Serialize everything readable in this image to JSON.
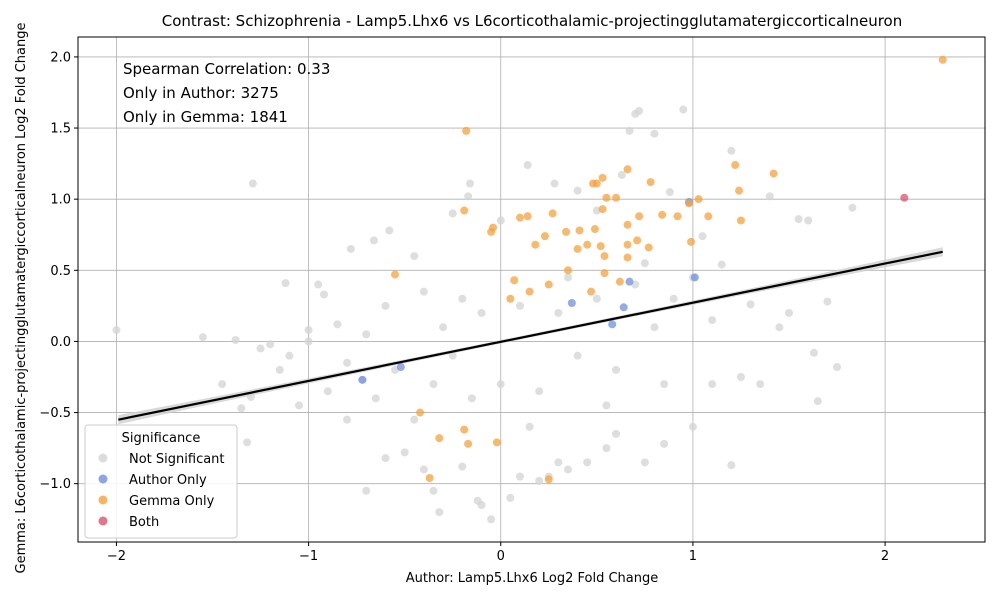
{
  "chart_data": {
    "type": "scatter",
    "title": "Contrast: Schizophrenia - Lamp5.Lhx6 vs L6corticothalamic-projectingglutamatergiccorticalneuron",
    "xlabel": "Author: Lamp5.Lhx6 Log2 Fold Change",
    "ylabel": "Gemma: L6corticothalamic-projectingglutamatergiccorticalneuron Log2 Fold Change",
    "xlim": [
      -2.2,
      2.52
    ],
    "ylim": [
      -1.41,
      2.14
    ],
    "x_ticks": [
      -2,
      -1,
      0,
      1,
      2
    ],
    "x_tick_labels": [
      "−2",
      "−1",
      "0",
      "1",
      "2"
    ],
    "y_ticks": [
      -1.0,
      -0.5,
      0.0,
      0.5,
      1.0,
      1.5,
      2.0
    ],
    "y_tick_labels": [
      "−1.0",
      "−0.5",
      "0.0",
      "0.5",
      "1.0",
      "1.5",
      "2.0"
    ],
    "grid": true,
    "annotations": [
      "Spearman Correlation: 0.33",
      "Only in Author: 3275",
      "Only in Gemma: 1841"
    ],
    "legend": {
      "title": "Significance",
      "placement": "lower-left",
      "entries": [
        {
          "label": "Not Significant",
          "color": "#d3d3d3"
        },
        {
          "label": "Author Only",
          "color": "#6f8fe0"
        },
        {
          "label": "Gemma Only",
          "color": "#f5a23c"
        },
        {
          "label": "Both",
          "color": "#d9546e"
        }
      ]
    },
    "regression_line": {
      "x": [
        -1.99,
        2.3
      ],
      "y": [
        -0.55,
        0.63
      ],
      "color": "#000000",
      "band_color": "#cfcfcf"
    },
    "series": [
      {
        "name": "Not Significant",
        "color": "#d3d3d3",
        "points": [
          [
            -2.0,
            0.08
          ],
          [
            -1.55,
            0.03
          ],
          [
            -1.45,
            -0.3
          ],
          [
            -1.38,
            0.01
          ],
          [
            -1.35,
            -0.47
          ],
          [
            -1.32,
            -0.71
          ],
          [
            -1.3,
            -0.39
          ],
          [
            -1.29,
            1.11
          ],
          [
            -1.25,
            -0.05
          ],
          [
            -1.2,
            -0.02
          ],
          [
            -1.15,
            -0.2
          ],
          [
            -1.12,
            0.41
          ],
          [
            -1.1,
            -0.1
          ],
          [
            -1.05,
            -0.45
          ],
          [
            -1.0,
            0.08
          ],
          [
            -0.95,
            0.4
          ],
          [
            -0.92,
            0.33
          ],
          [
            -0.9,
            -0.35
          ],
          [
            -0.85,
            0.12
          ],
          [
            -0.8,
            -0.55
          ],
          [
            -0.78,
            0.65
          ],
          [
            -0.72,
            -0.27
          ],
          [
            -0.7,
            -1.05
          ],
          [
            -0.66,
            0.71
          ],
          [
            -0.6,
            -0.82
          ],
          [
            -0.58,
            0.78
          ],
          [
            -0.5,
            -0.78
          ],
          [
            -0.45,
            0.6
          ],
          [
            -0.4,
            -0.9
          ],
          [
            -0.35,
            -1.05
          ],
          [
            -0.32,
            -1.2
          ],
          [
            -0.25,
            0.9
          ],
          [
            -0.2,
            -0.88
          ],
          [
            -0.17,
            1.02
          ],
          [
            -0.16,
            1.11
          ],
          [
            -0.12,
            -1.12
          ],
          [
            -0.1,
            -1.15
          ],
          [
            -0.05,
            -1.25
          ],
          [
            0.0,
            0.85
          ],
          [
            0.05,
            -1.1
          ],
          [
            0.1,
            -0.95
          ],
          [
            0.14,
            1.24
          ],
          [
            0.2,
            -0.98
          ],
          [
            0.25,
            -0.95
          ],
          [
            0.28,
            1.11
          ],
          [
            0.3,
            -0.85
          ],
          [
            0.35,
            -0.9
          ],
          [
            0.4,
            1.06
          ],
          [
            0.45,
            -0.85
          ],
          [
            0.5,
            0.92
          ],
          [
            0.55,
            -0.75
          ],
          [
            0.6,
            -0.65
          ],
          [
            0.63,
            1.17
          ],
          [
            0.67,
            1.48
          ],
          [
            0.7,
            1.6
          ],
          [
            0.72,
            1.62
          ],
          [
            0.75,
            -0.85
          ],
          [
            0.8,
            1.46
          ],
          [
            0.85,
            -0.72
          ],
          [
            0.88,
            1.05
          ],
          [
            0.95,
            1.63
          ],
          [
            1.0,
            -0.6
          ],
          [
            1.05,
            0.74
          ],
          [
            1.1,
            -0.3
          ],
          [
            1.15,
            0.54
          ],
          [
            1.2,
            1.34
          ],
          [
            1.2,
            -0.87
          ],
          [
            1.25,
            -0.25
          ],
          [
            1.3,
            0.26
          ],
          [
            1.35,
            -0.3
          ],
          [
            1.4,
            1.02
          ],
          [
            1.45,
            0.1
          ],
          [
            1.5,
            0.2
          ],
          [
            1.55,
            0.86
          ],
          [
            1.6,
            0.85
          ],
          [
            1.63,
            -0.08
          ],
          [
            1.65,
            -0.42
          ],
          [
            1.7,
            0.28
          ],
          [
            1.75,
            -0.18
          ],
          [
            1.83,
            0.94
          ],
          [
            -1.0,
            0.0
          ],
          [
            -0.6,
            0.25
          ],
          [
            -0.55,
            -0.2
          ],
          [
            -0.4,
            0.35
          ],
          [
            -0.35,
            -0.3
          ],
          [
            -0.3,
            0.1
          ],
          [
            -0.25,
            -0.1
          ],
          [
            -0.2,
            0.3
          ],
          [
            -0.15,
            -0.4
          ],
          [
            -0.1,
            0.2
          ],
          [
            0.0,
            -0.3
          ],
          [
            0.1,
            0.25
          ],
          [
            0.2,
            -0.35
          ],
          [
            0.3,
            0.2
          ],
          [
            0.4,
            -0.1
          ],
          [
            0.5,
            0.3
          ],
          [
            0.6,
            -0.2
          ],
          [
            0.7,
            0.4
          ],
          [
            0.8,
            0.1
          ],
          [
            0.9,
            0.3
          ],
          [
            1.0,
            0.45
          ],
          [
            -0.8,
            -0.15
          ],
          [
            -0.7,
            0.05
          ],
          [
            -0.65,
            -0.4
          ],
          [
            -0.45,
            -0.55
          ],
          [
            0.15,
            -0.6
          ],
          [
            0.35,
            0.45
          ],
          [
            0.55,
            -0.45
          ],
          [
            0.75,
            0.55
          ],
          [
            0.85,
            -0.3
          ],
          [
            1.1,
            0.15
          ]
        ]
      },
      {
        "name": "Author Only",
        "color": "#6f8fe0",
        "points": [
          [
            -0.72,
            -0.27
          ],
          [
            -0.52,
            -0.18
          ],
          [
            0.37,
            0.27
          ],
          [
            0.58,
            0.12
          ],
          [
            0.64,
            0.24
          ],
          [
            0.67,
            0.42
          ],
          [
            0.98,
            0.98
          ],
          [
            1.01,
            0.45
          ]
        ]
      },
      {
        "name": "Gemma Only",
        "color": "#f5a23c",
        "points": [
          [
            2.3,
            1.98
          ],
          [
            -0.18,
            1.48
          ],
          [
            1.22,
            1.24
          ],
          [
            0.66,
            1.21
          ],
          [
            1.42,
            1.18
          ],
          [
            0.53,
            1.15
          ],
          [
            0.48,
            1.11
          ],
          [
            0.5,
            1.11
          ],
          [
            0.78,
            1.12
          ],
          [
            0.55,
            1.01
          ],
          [
            0.6,
            1.01
          ],
          [
            1.24,
            1.06
          ],
          [
            0.98,
            0.97
          ],
          [
            1.03,
            1.0
          ],
          [
            0.53,
            0.93
          ],
          [
            0.72,
            0.88
          ],
          [
            0.84,
            0.89
          ],
          [
            0.66,
            0.82
          ],
          [
            0.92,
            0.88
          ],
          [
            1.08,
            0.88
          ],
          [
            1.25,
            0.85
          ],
          [
            -0.19,
            0.92
          ],
          [
            -0.04,
            0.8
          ],
          [
            -0.05,
            0.77
          ],
          [
            0.1,
            0.87
          ],
          [
            0.14,
            0.88
          ],
          [
            0.27,
            0.9
          ],
          [
            0.23,
            0.74
          ],
          [
            0.34,
            0.77
          ],
          [
            0.41,
            0.78
          ],
          [
            0.49,
            0.79
          ],
          [
            0.71,
            0.71
          ],
          [
            0.99,
            0.7
          ],
          [
            0.18,
            0.68
          ],
          [
            0.45,
            0.68
          ],
          [
            0.52,
            0.67
          ],
          [
            0.66,
            0.68
          ],
          [
            0.54,
            0.6
          ],
          [
            0.66,
            0.59
          ],
          [
            0.77,
            0.66
          ],
          [
            0.62,
            0.42
          ],
          [
            -0.55,
            0.47
          ],
          [
            0.07,
            0.43
          ],
          [
            0.47,
            0.35
          ],
          [
            0.54,
            0.48
          ],
          [
            -0.42,
            -0.5
          ],
          [
            -0.32,
            -0.68
          ],
          [
            -0.37,
            -0.96
          ],
          [
            -0.19,
            -0.62
          ],
          [
            -0.17,
            -0.72
          ],
          [
            -0.02,
            -0.71
          ],
          [
            0.25,
            -0.97
          ],
          [
            0.05,
            0.3
          ],
          [
            0.15,
            0.35
          ],
          [
            0.25,
            0.4
          ],
          [
            0.35,
            0.5
          ],
          [
            0.4,
            0.65
          ]
        ]
      },
      {
        "name": "Both",
        "color": "#d9546e",
        "points": [
          [
            2.1,
            1.01
          ]
        ]
      }
    ]
  }
}
